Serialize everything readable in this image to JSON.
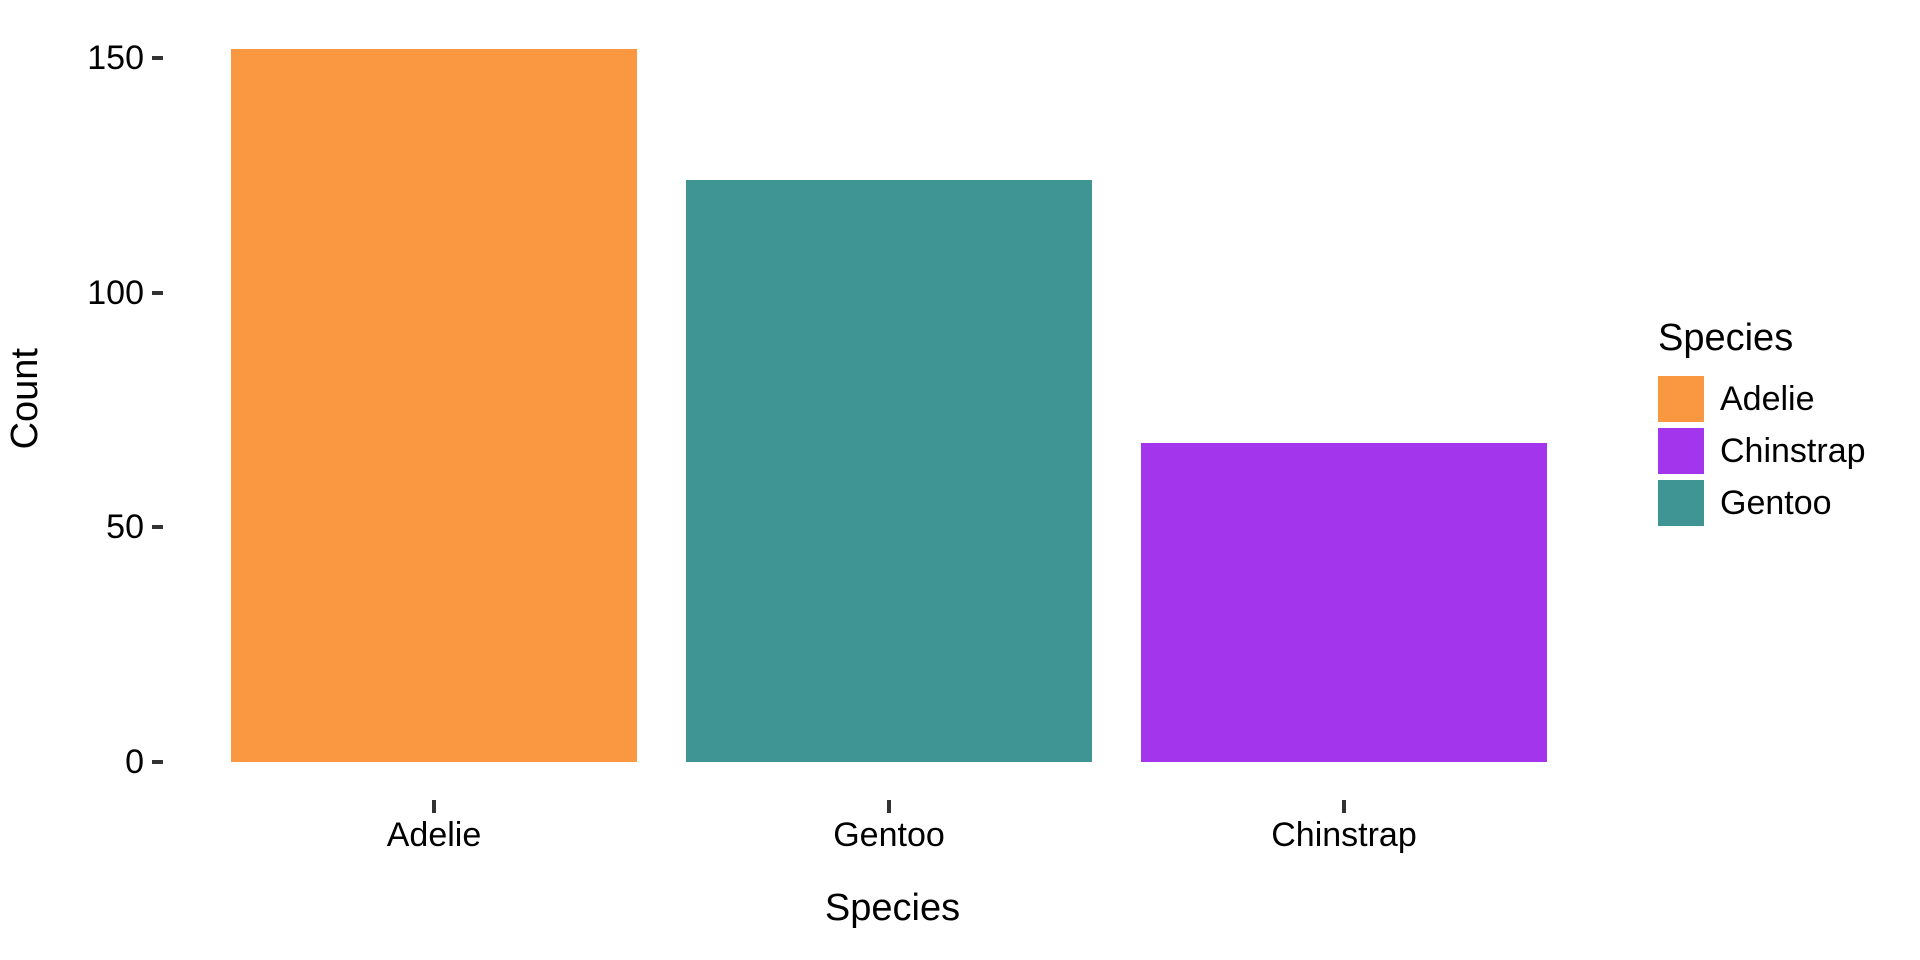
{
  "chart_data": {
    "type": "bar",
    "title": "",
    "xlabel": "Species",
    "ylabel": "Count",
    "categories": [
      "Adelie",
      "Gentoo",
      "Chinstrap"
    ],
    "values": [
      152,
      124,
      68
    ],
    "colors": [
      "#FA9842",
      "#3E9593",
      "#A335ED"
    ],
    "ylim": [
      0,
      156
    ],
    "yticks": [
      0,
      50,
      100,
      150
    ],
    "grid": false,
    "background": "#ffffff",
    "legend": {
      "title": "Species",
      "position": "right",
      "entries": [
        {
          "label": "Adelie",
          "color": "#FA9842"
        },
        {
          "label": "Chinstrap",
          "color": "#A335ED"
        },
        {
          "label": "Gentoo",
          "color": "#3E9593"
        }
      ]
    }
  }
}
